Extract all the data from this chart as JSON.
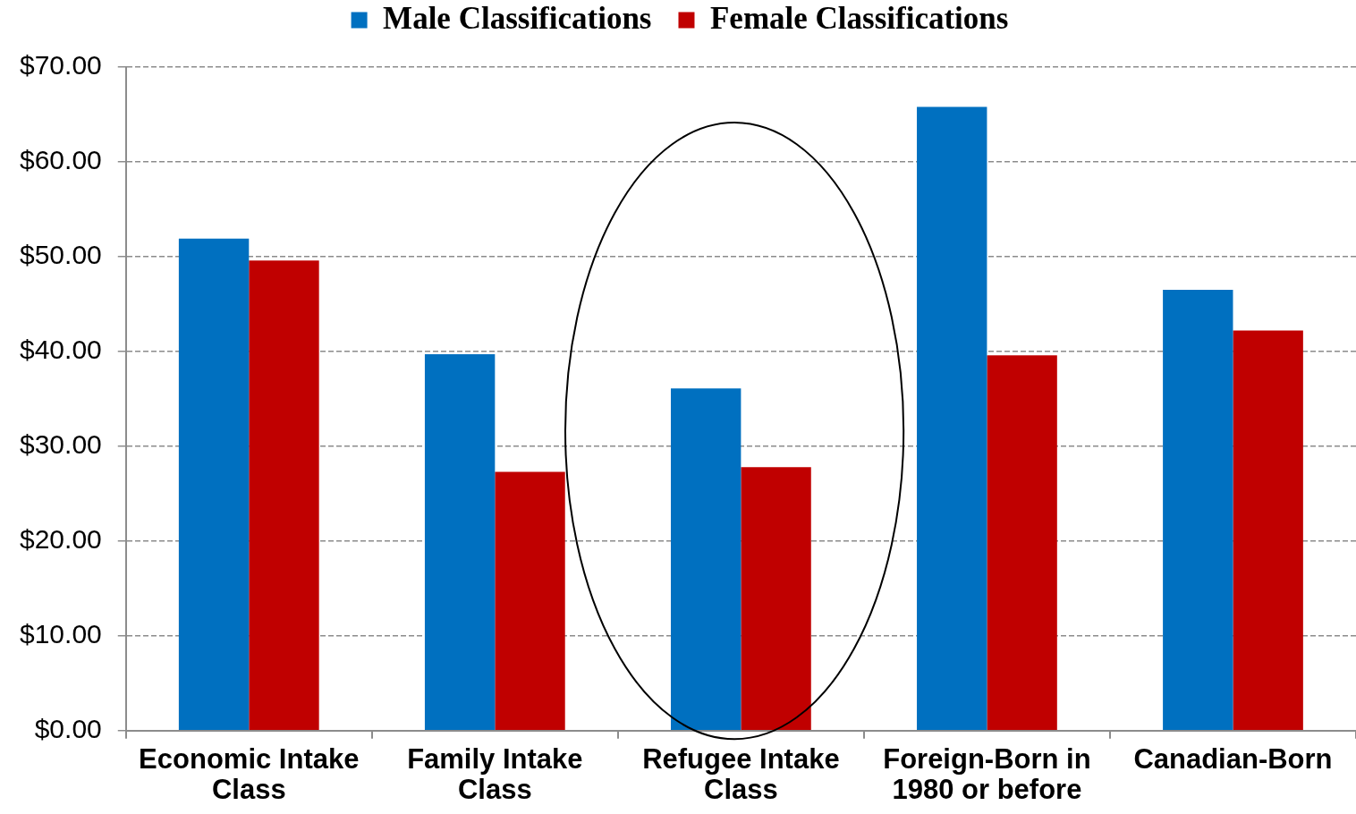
{
  "chart_data": {
    "type": "bar",
    "categories": [
      "Economic Intake Class",
      "Family Intake Class",
      "Refugee Intake Class",
      "Foreign-Born in 1980 or before",
      "Canadian-Born"
    ],
    "series": [
      {
        "name": "Male Classifications",
        "color": "#0070c0",
        "values": [
          51.9,
          39.7,
          36.1,
          65.8,
          46.5
        ]
      },
      {
        "name": "Female Classifications",
        "color": "#c00000",
        "values": [
          49.6,
          27.3,
          27.8,
          39.6,
          42.2
        ]
      }
    ],
    "ylim": [
      0,
      70
    ],
    "yticks": [
      {
        "value": 0,
        "label": "$0.00"
      },
      {
        "value": 10,
        "label": "$10.00"
      },
      {
        "value": 20,
        "label": "$20.00"
      },
      {
        "value": 30,
        "label": "$30.00"
      },
      {
        "value": 40,
        "label": "$40.00"
      },
      {
        "value": 50,
        "label": "$50.00"
      },
      {
        "value": 60,
        "label": "$60.00"
      },
      {
        "value": 70,
        "label": "$70.00"
      }
    ],
    "grid": "y",
    "legend": "top"
  }
}
